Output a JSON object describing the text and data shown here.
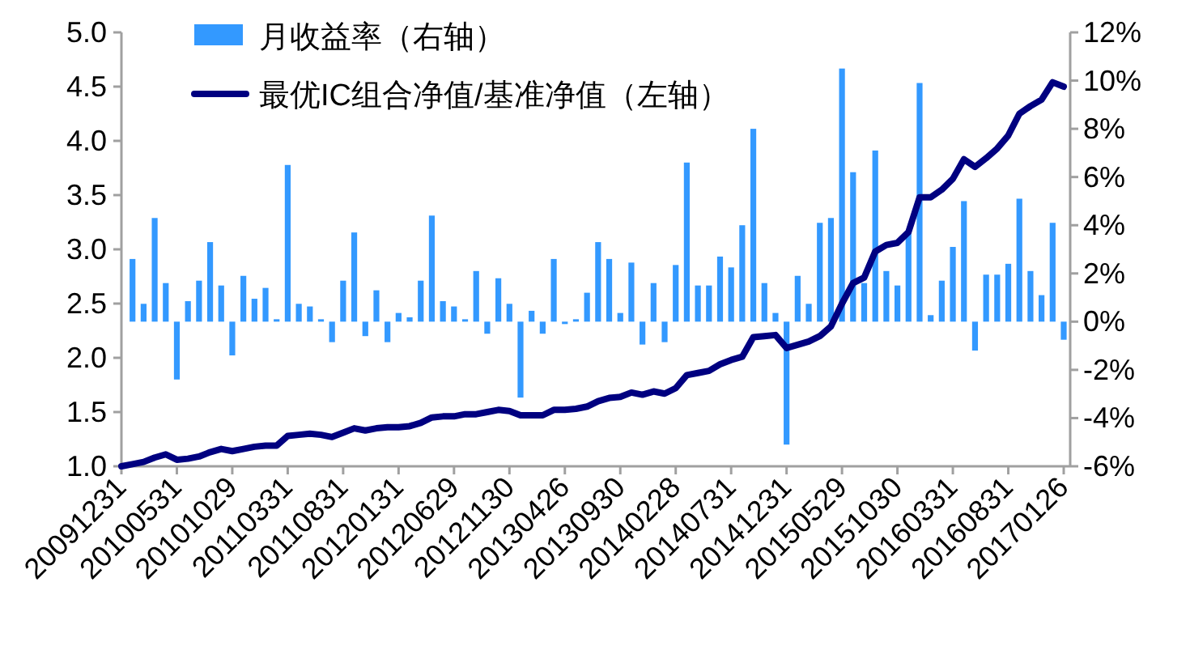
{
  "chart_data": {
    "type": "bar",
    "legend": "top left",
    "grid": false,
    "categories": [
      "20091231",
      null,
      null,
      null,
      null,
      "20100531",
      null,
      null,
      null,
      null,
      "20101029",
      null,
      null,
      null,
      null,
      "20110331",
      null,
      null,
      null,
      null,
      "20110831",
      null,
      null,
      null,
      null,
      "20120131",
      null,
      null,
      null,
      null,
      "20120629",
      null,
      null,
      null,
      null,
      "20121130",
      null,
      null,
      null,
      null,
      "20130426",
      null,
      null,
      null,
      null,
      "20130930",
      null,
      null,
      null,
      null,
      "20140228",
      null,
      null,
      null,
      null,
      "20140731",
      null,
      null,
      null,
      null,
      "20141231",
      null,
      null,
      null,
      null,
      "20150529",
      null,
      null,
      null,
      null,
      "20151030",
      null,
      null,
      null,
      null,
      "20160331",
      null,
      null,
      null,
      null,
      "20160831",
      null,
      null,
      null,
      null,
      "20170126"
    ],
    "series": [
      {
        "name": "月收益率（右轴）",
        "axis": "y2",
        "color": "#3399ff",
        "values": [
          null,
          2.6,
          0.74,
          4.3,
          1.6,
          -2.4,
          0.85,
          1.7,
          3.3,
          1.5,
          -1.4,
          1.9,
          0.95,
          1.4,
          0.1,
          6.5,
          0.74,
          0.63,
          0.1,
          -0.85,
          1.7,
          3.7,
          -0.6,
          1.3,
          -0.85,
          0.36,
          0.18,
          1.7,
          4.4,
          0.85,
          0.63,
          0.1,
          2.1,
          -0.5,
          1.8,
          0.74,
          -3.15,
          0.45,
          -0.5,
          2.6,
          -0.1,
          0.1,
          1.2,
          3.3,
          2.6,
          0.36,
          2.45,
          -0.95,
          1.6,
          -0.85,
          2.35,
          6.6,
          1.5,
          1.5,
          2.7,
          2.25,
          4.0,
          8.0,
          1.6,
          0.36,
          -5.1,
          1.9,
          0.74,
          4.1,
          4.3,
          10.5,
          6.2,
          1.6,
          7.1,
          2.1,
          1.5,
          3.7,
          9.9,
          0.27,
          1.7,
          3.1,
          5.0,
          -1.2,
          1.95,
          1.95,
          2.4,
          5.1,
          2.1,
          1.1,
          4.1,
          -0.75
        ]
      },
      {
        "name": "最优IC组合净值/基准净值（左轴）",
        "type": "line",
        "color": "#000080",
        "values": [
          1.0,
          1.02,
          1.04,
          1.08,
          1.11,
          1.06,
          1.07,
          1.09,
          1.13,
          1.16,
          1.14,
          1.16,
          1.18,
          1.19,
          1.19,
          1.28,
          1.29,
          1.3,
          1.29,
          1.27,
          1.31,
          1.35,
          1.33,
          1.35,
          1.36,
          1.36,
          1.37,
          1.4,
          1.45,
          1.46,
          1.46,
          1.48,
          1.48,
          1.5,
          1.52,
          1.51,
          1.47,
          1.47,
          1.47,
          1.52,
          1.52,
          1.53,
          1.55,
          1.6,
          1.63,
          1.64,
          1.68,
          1.66,
          1.69,
          1.67,
          1.72,
          1.84,
          1.86,
          1.88,
          1.94,
          1.98,
          2.01,
          2.19,
          2.2,
          2.21,
          2.09,
          2.12,
          2.15,
          2.2,
          2.29,
          2.5,
          2.69,
          2.74,
          2.98,
          3.04,
          3.06,
          3.16,
          3.48,
          3.48,
          3.55,
          3.65,
          3.83,
          3.76,
          3.84,
          3.93,
          4.05,
          4.25,
          4.32,
          4.38,
          4.54,
          4.5
        ]
      }
    ],
    "ylim": [
      1,
      5
    ],
    "yticks": [
      {
        "value": 1,
        "label": "1.0"
      },
      {
        "value": 1.5,
        "label": "1.5"
      },
      {
        "value": 2,
        "label": "2.0"
      },
      {
        "value": 2.5,
        "label": "2.5"
      },
      {
        "value": 3,
        "label": "3.0"
      },
      {
        "value": 3.5,
        "label": "3.5"
      },
      {
        "value": 4,
        "label": "4.0"
      },
      {
        "value": 4.5,
        "label": "4.5"
      },
      {
        "value": 5,
        "label": "5.0"
      }
    ],
    "y2lim": [
      -6,
      12
    ],
    "y2ticks": [
      {
        "value": -6,
        "label": "-6%"
      },
      {
        "value": -4,
        "label": "-4%"
      },
      {
        "value": -2,
        "label": "-2%"
      },
      {
        "value": 0,
        "label": "0%"
      },
      {
        "value": 2,
        "label": "2%"
      },
      {
        "value": 4,
        "label": "4%"
      },
      {
        "value": 6,
        "label": "6%"
      },
      {
        "value": 8,
        "label": "8%"
      },
      {
        "value": 10,
        "label": "10%"
      },
      {
        "value": 12,
        "label": "12%"
      }
    ]
  }
}
